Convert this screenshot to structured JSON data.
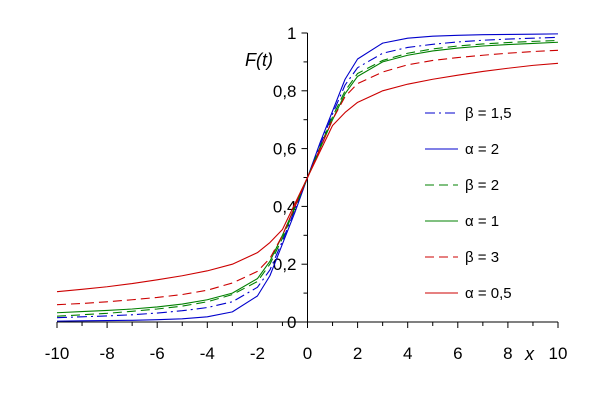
{
  "chart_data": {
    "type": "line",
    "title": "",
    "xlabel": "x",
    "ylabel": "F(t)",
    "xlim": [
      -10,
      10
    ],
    "ylim": [
      0,
      1
    ],
    "x_ticks": [
      "-10",
      "-8",
      "-6",
      "-4",
      "-2",
      "0",
      "2",
      "4",
      "6",
      "8",
      "10"
    ],
    "y_ticks": [
      "0",
      "0,2",
      "0,4",
      "0,6",
      "0,8",
      "1"
    ],
    "grid": false,
    "legend_position": "right",
    "x": [
      -10,
      -9,
      -8,
      -7,
      -6,
      -5,
      -4,
      -3,
      -2,
      -1.5,
      -1,
      -0.5,
      0,
      0.5,
      1,
      1.5,
      2,
      3,
      4,
      5,
      6,
      7,
      8,
      9,
      10
    ],
    "series": [
      {
        "name": "β = 1,5",
        "color": "#0000cc",
        "dash": "dashdot",
        "values": [
          0.015,
          0.018,
          0.021,
          0.025,
          0.031,
          0.039,
          0.05,
          0.07,
          0.12,
          0.18,
          0.28,
          0.39,
          0.5,
          0.61,
          0.72,
          0.82,
          0.88,
          0.93,
          0.95,
          0.961,
          0.969,
          0.975,
          0.979,
          0.982,
          0.985
        ]
      },
      {
        "name": "α = 2",
        "color": "#0000cc",
        "dash": "solid",
        "values": [
          0.003,
          0.004,
          0.005,
          0.006,
          0.008,
          0.011,
          0.018,
          0.035,
          0.09,
          0.16,
          0.27,
          0.38,
          0.5,
          0.62,
          0.73,
          0.84,
          0.91,
          0.965,
          0.982,
          0.989,
          0.992,
          0.994,
          0.995,
          0.996,
          0.997
        ]
      },
      {
        "name": "β = 2",
        "color": "#008000",
        "dash": "dashed",
        "values": [
          0.02,
          0.025,
          0.03,
          0.037,
          0.045,
          0.055,
          0.07,
          0.095,
          0.14,
          0.2,
          0.29,
          0.395,
          0.5,
          0.605,
          0.71,
          0.8,
          0.86,
          0.905,
          0.93,
          0.945,
          0.955,
          0.962,
          0.967,
          0.971,
          0.974
        ]
      },
      {
        "name": "α = 1",
        "color": "#008000",
        "dash": "solid",
        "values": [
          0.032,
          0.036,
          0.04,
          0.045,
          0.052,
          0.062,
          0.077,
          0.1,
          0.15,
          0.21,
          0.3,
          0.4,
          0.5,
          0.6,
          0.7,
          0.79,
          0.85,
          0.9,
          0.923,
          0.938,
          0.948,
          0.955,
          0.96,
          0.964,
          0.968
        ]
      },
      {
        "name": "β = 3",
        "color": "#cc0000",
        "dash": "dashed",
        "values": [
          0.06,
          0.064,
          0.07,
          0.077,
          0.085,
          0.095,
          0.11,
          0.135,
          0.175,
          0.22,
          0.3,
          0.4,
          0.5,
          0.6,
          0.7,
          0.78,
          0.825,
          0.865,
          0.89,
          0.905,
          0.915,
          0.923,
          0.93,
          0.936,
          0.94
        ]
      },
      {
        "name": "α = 0,5",
        "color": "#cc0000",
        "dash": "solid",
        "values": [
          0.105,
          0.113,
          0.122,
          0.133,
          0.146,
          0.16,
          0.177,
          0.2,
          0.24,
          0.275,
          0.32,
          0.41,
          0.5,
          0.59,
          0.68,
          0.725,
          0.76,
          0.8,
          0.823,
          0.84,
          0.854,
          0.867,
          0.878,
          0.888,
          0.895
        ]
      }
    ]
  }
}
